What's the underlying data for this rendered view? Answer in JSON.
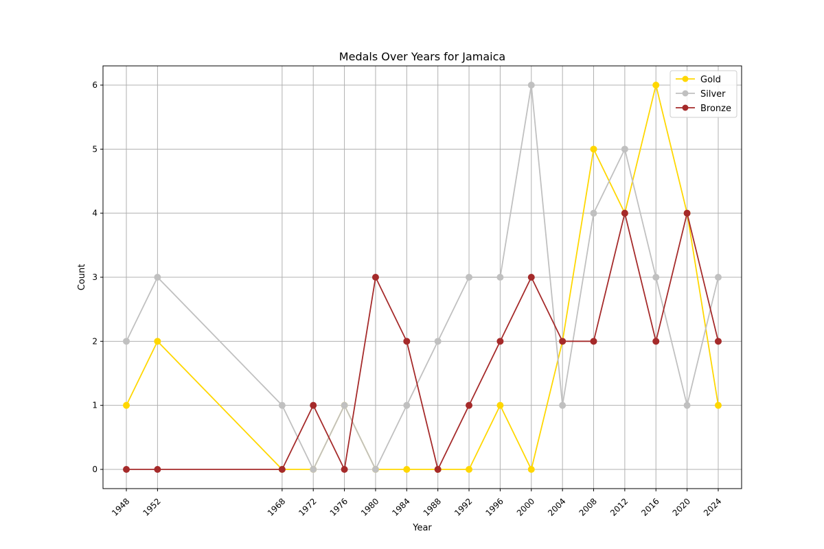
{
  "chart_data": {
    "type": "line",
    "title": "Medals Over Years for Jamaica",
    "xlabel": "Year",
    "ylabel": "Count",
    "x": [
      1948,
      1952,
      1968,
      1972,
      1976,
      1980,
      1984,
      1988,
      1992,
      1996,
      2000,
      2004,
      2008,
      2012,
      2016,
      2020,
      2024
    ],
    "xlim": [
      1945,
      2027
    ],
    "ylim": [
      -0.3,
      6.3
    ],
    "yticks": [
      0,
      1,
      2,
      3,
      4,
      5,
      6
    ],
    "grid": true,
    "legend_position": "top-right",
    "series": [
      {
        "name": "Gold",
        "color": "#FFD700",
        "values": [
          1,
          2,
          0,
          0,
          1,
          0,
          0,
          0,
          0,
          1,
          0,
          2,
          5,
          4,
          6,
          4,
          1
        ]
      },
      {
        "name": "Silver",
        "color": "#C0C0C0",
        "values": [
          2,
          3,
          1,
          0,
          1,
          0,
          1,
          2,
          3,
          3,
          6,
          1,
          4,
          5,
          3,
          1,
          3
        ]
      },
      {
        "name": "Bronze",
        "color": "#A52A2A",
        "values": [
          0,
          0,
          0,
          1,
          0,
          3,
          2,
          0,
          1,
          2,
          3,
          2,
          2,
          4,
          2,
          4,
          2
        ]
      }
    ]
  }
}
